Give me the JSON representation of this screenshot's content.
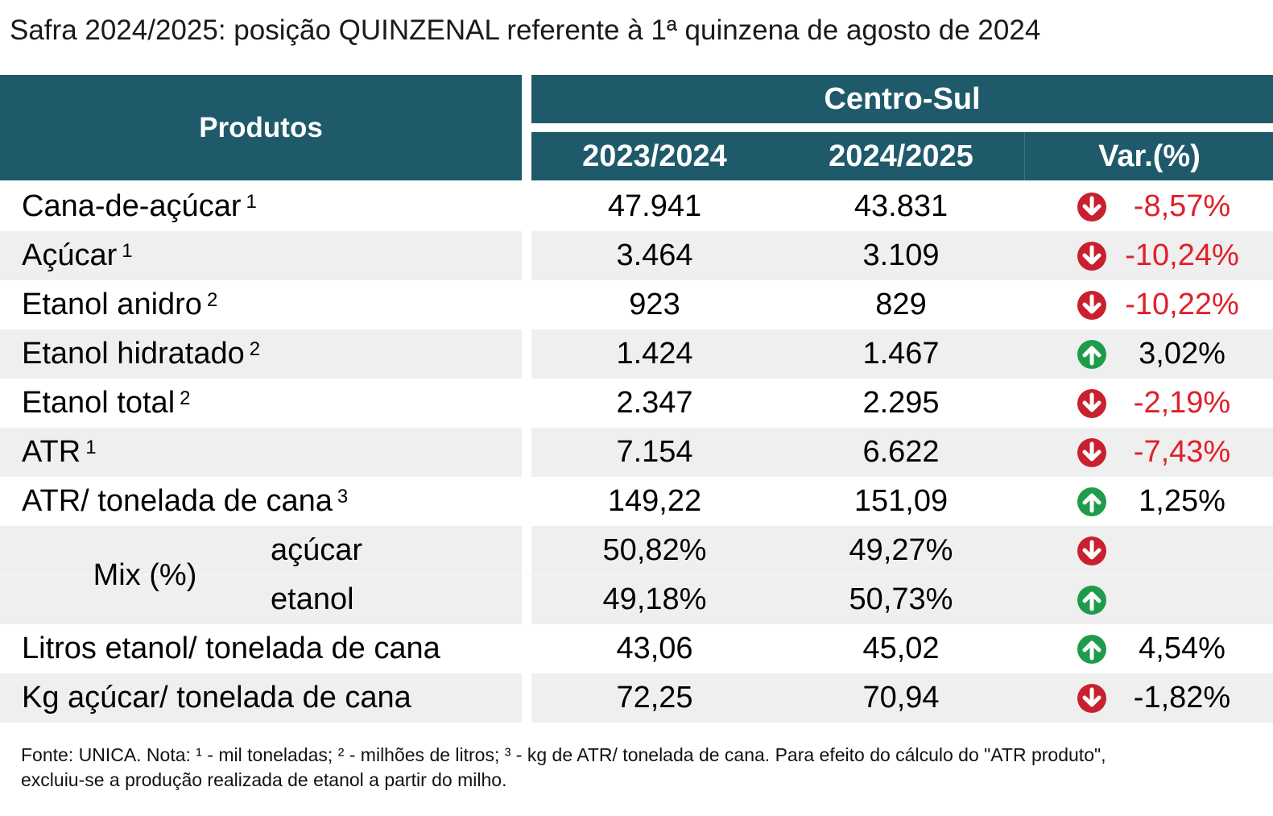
{
  "title": "Safra 2024/2025: posição QUINZENAL referente à 1ª quinzena de agosto de 2024",
  "header": {
    "produtos": "Produtos",
    "region": "Centro-Sul",
    "col1": "2023/2024",
    "col2": "2024/2025",
    "col3": "Var.(%)"
  },
  "rows": [
    {
      "label": "Cana-de-açúcar",
      "sup": "1",
      "v1": "47.941",
      "v2": "43.831",
      "dir": "down",
      "var": "-8,57%"
    },
    {
      "label": "Açúcar",
      "sup": "1",
      "v1": "3.464",
      "v2": "3.109",
      "dir": "down",
      "var": "-10,24%"
    },
    {
      "label": "Etanol anidro",
      "sup": "2",
      "v1": "923",
      "v2": "829",
      "dir": "down",
      "var": "-10,22%"
    },
    {
      "label": "Etanol hidratado",
      "sup": "2",
      "v1": "1.424",
      "v2": "1.467",
      "dir": "up",
      "var": "3,02%"
    },
    {
      "label": "Etanol total",
      "sup": "2",
      "v1": "2.347",
      "v2": "2.295",
      "dir": "down",
      "var": "-2,19%"
    },
    {
      "label": "ATR",
      "sup": "1",
      "v1": "7.154",
      "v2": "6.622",
      "dir": "down",
      "var": "-7,43%"
    },
    {
      "label": "ATR/ tonelada de cana",
      "sup": "3",
      "v1": "149,22",
      "v2": "151,09",
      "dir": "up",
      "var": "1,25%"
    }
  ],
  "mix": {
    "label": "Mix (%)",
    "acucar": {
      "label": "açúcar",
      "v1": "50,82%",
      "v2": "49,27%",
      "dir": "down"
    },
    "etanol": {
      "label": "etanol",
      "v1": "49,18%",
      "v2": "50,73%",
      "dir": "up"
    }
  },
  "rows2": [
    {
      "label": "Litros etanol/ tonelada de cana",
      "v1": "43,06",
      "v2": "45,02",
      "dir": "up",
      "var": "4,54%"
    },
    {
      "label": "Kg açúcar/ tonelada de cana",
      "v1": "72,25",
      "v2": "70,94",
      "dir": "down",
      "var": "-1,82%"
    }
  ],
  "footnote": {
    "line1": "Fonte: UNICA. Nota: ¹ - mil toneladas; ² - milhões de litros; ³ - kg de ATR/ tonelada de cana. Para efeito do cálculo do \"ATR produto\",",
    "line2": "excluiu-se a produção realizada de etanol a partir do milho."
  },
  "colors": {
    "header_bg": "#1f5a6b",
    "down": "#c8202e",
    "up": "#1e9b4b",
    "negative_text": "#e0202a",
    "shade": "#efefef"
  },
  "icons": {
    "down": "arrow-down-circle-icon",
    "up": "arrow-up-circle-icon"
  }
}
